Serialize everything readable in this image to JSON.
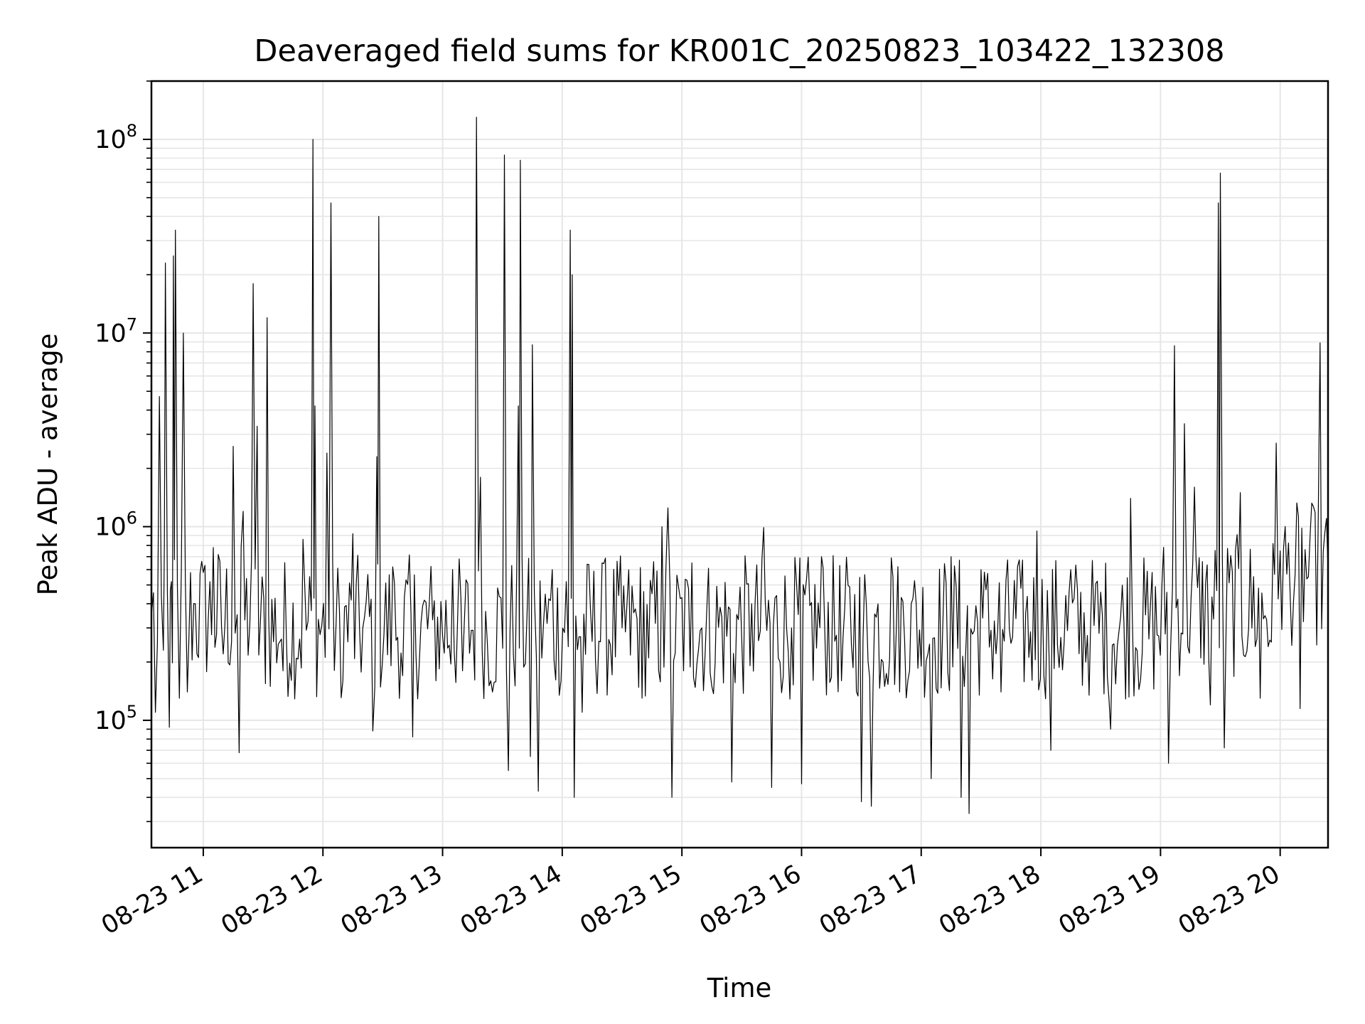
{
  "chart_data": {
    "type": "line",
    "title": "Deaveraged field sums for KR001C_20250823_103422_132308",
    "xlabel": "Time",
    "ylabel": "Peak ADU - average",
    "y_scale": "log",
    "ylim": [
      22000,
      200000000
    ],
    "xlim": [
      "2025-08-23T10:34",
      "2025-08-23T20:24"
    ],
    "grid": true,
    "line_color": "#000000",
    "grid_color": "#e6e6e6",
    "x_ticks": [
      {
        "value": "2025-08-23T11:00",
        "label": "08-23 11"
      },
      {
        "value": "2025-08-23T12:00",
        "label": "08-23 12"
      },
      {
        "value": "2025-08-23T13:00",
        "label": "08-23 13"
      },
      {
        "value": "2025-08-23T14:00",
        "label": "08-23 14"
      },
      {
        "value": "2025-08-23T15:00",
        "label": "08-23 15"
      },
      {
        "value": "2025-08-23T16:00",
        "label": "08-23 16"
      },
      {
        "value": "2025-08-23T17:00",
        "label": "08-23 17"
      },
      {
        "value": "2025-08-23T18:00",
        "label": "08-23 18"
      },
      {
        "value": "2025-08-23T19:00",
        "label": "08-23 19"
      },
      {
        "value": "2025-08-23T20:00",
        "label": "08-23 20"
      }
    ],
    "y_ticks": [
      {
        "value": 100000,
        "base": "10",
        "exp": "5"
      },
      {
        "value": 1000000,
        "base": "10",
        "exp": "6"
      },
      {
        "value": 10000000,
        "base": "10",
        "exp": "7"
      },
      {
        "value": 100000000,
        "base": "10",
        "exp": "8"
      }
    ],
    "series": [
      {
        "points": [
          [
            "2025-08-23T10:34",
            350000
          ],
          [
            "2025-08-23T10:36",
            110000
          ],
          [
            "2025-08-23T10:38",
            4700000
          ],
          [
            "2025-08-23T10:40",
            230000
          ],
          [
            "2025-08-23T10:41",
            23000000
          ],
          [
            "2025-08-23T10:43",
            92000
          ],
          [
            "2025-08-23T10:44",
            520000
          ],
          [
            "2025-08-23T10:45",
            25000000
          ],
          [
            "2025-08-23T10:46",
            34000000
          ],
          [
            "2025-08-23T10:48",
            130000
          ],
          [
            "2025-08-23T10:50",
            10000000
          ],
          [
            "2025-08-23T10:52",
            140000
          ],
          [
            "2025-08-23T10:56",
            400000
          ],
          [
            "2025-08-23T11:00",
            580000
          ],
          [
            "2025-08-23T11:05",
            780000
          ],
          [
            "2025-08-23T11:10",
            220000
          ],
          [
            "2025-08-23T11:15",
            2600000
          ],
          [
            "2025-08-23T11:18",
            68000
          ],
          [
            "2025-08-23T11:20",
            1200000
          ],
          [
            "2025-08-23T11:25",
            18000000
          ],
          [
            "2025-08-23T11:27",
            3300000
          ],
          [
            "2025-08-23T11:32",
            12000000
          ],
          [
            "2025-08-23T11:40",
            180000
          ],
          [
            "2025-08-23T11:50",
            860000
          ],
          [
            "2025-08-23T11:55",
            100000000
          ],
          [
            "2025-08-23T11:56",
            4200000
          ],
          [
            "2025-08-23T12:02",
            2400000
          ],
          [
            "2025-08-23T12:04",
            47000000
          ],
          [
            "2025-08-23T12:10",
            160000
          ],
          [
            "2025-08-23T12:15",
            920000
          ],
          [
            "2025-08-23T12:20",
            300000
          ],
          [
            "2025-08-23T12:25",
            88000
          ],
          [
            "2025-08-23T12:27",
            2300000
          ],
          [
            "2025-08-23T12:28",
            40000000
          ],
          [
            "2025-08-23T12:35",
            620000
          ],
          [
            "2025-08-23T12:40",
            170000
          ],
          [
            "2025-08-23T12:45",
            82000
          ],
          [
            "2025-08-23T12:55",
            330000
          ],
          [
            "2025-08-23T13:05",
            600000
          ],
          [
            "2025-08-23T13:10",
            180000
          ],
          [
            "2025-08-23T13:17",
            130000000
          ],
          [
            "2025-08-23T13:19",
            1800000
          ],
          [
            "2025-08-23T13:25",
            140000
          ],
          [
            "2025-08-23T13:31",
            83000000
          ],
          [
            "2025-08-23T13:33",
            55000
          ],
          [
            "2025-08-23T13:38",
            4200000
          ],
          [
            "2025-08-23T13:39",
            78000000
          ],
          [
            "2025-08-23T13:44",
            65000
          ],
          [
            "2025-08-23T13:45",
            8700000
          ],
          [
            "2025-08-23T13:48",
            43000
          ],
          [
            "2025-08-23T13:55",
            600000
          ],
          [
            "2025-08-23T14:02",
            520000
          ],
          [
            "2025-08-23T14:04",
            34000000
          ],
          [
            "2025-08-23T14:05",
            20000000
          ],
          [
            "2025-08-23T14:06",
            40000
          ],
          [
            "2025-08-23T14:10",
            110000
          ],
          [
            "2025-08-23T14:20",
            650000
          ],
          [
            "2025-08-23T14:30",
            300000
          ],
          [
            "2025-08-23T14:40",
            130000
          ],
          [
            "2025-08-23T14:50",
            1000000
          ],
          [
            "2025-08-23T14:53",
            1250000
          ],
          [
            "2025-08-23T14:55",
            40000
          ],
          [
            "2025-08-23T15:05",
            650000
          ],
          [
            "2025-08-23T15:15",
            150000
          ],
          [
            "2025-08-23T15:25",
            48000
          ],
          [
            "2025-08-23T15:35",
            400000
          ],
          [
            "2025-08-23T15:41",
            990000
          ],
          [
            "2025-08-23T15:45",
            45000
          ],
          [
            "2025-08-23T15:55",
            300000
          ],
          [
            "2025-08-23T16:00",
            47000
          ],
          [
            "2025-08-23T16:10",
            700000
          ],
          [
            "2025-08-23T16:20",
            160000
          ],
          [
            "2025-08-23T16:30",
            38000
          ],
          [
            "2025-08-23T16:35",
            36000
          ],
          [
            "2025-08-23T16:45",
            690000
          ],
          [
            "2025-08-23T16:55",
            400000
          ],
          [
            "2025-08-23T17:05",
            50000
          ],
          [
            "2025-08-23T17:15",
            700000
          ],
          [
            "2025-08-23T17:20",
            40000
          ],
          [
            "2025-08-23T17:24",
            33000
          ],
          [
            "2025-08-23T17:30",
            600000
          ],
          [
            "2025-08-23T17:40",
            140000
          ],
          [
            "2025-08-23T17:50",
            480000
          ],
          [
            "2025-08-23T17:58",
            950000
          ],
          [
            "2025-08-23T18:05",
            70000
          ],
          [
            "2025-08-23T18:15",
            600000
          ],
          [
            "2025-08-23T18:25",
            330000
          ],
          [
            "2025-08-23T18:35",
            90000
          ],
          [
            "2025-08-23T18:45",
            1400000
          ],
          [
            "2025-08-23T18:55",
            400000
          ],
          [
            "2025-08-23T19:04",
            60000
          ],
          [
            "2025-08-23T19:07",
            8600000
          ],
          [
            "2025-08-23T19:12",
            3400000
          ],
          [
            "2025-08-23T19:17",
            1600000
          ],
          [
            "2025-08-23T19:25",
            120000
          ],
          [
            "2025-08-23T19:29",
            47000000
          ],
          [
            "2025-08-23T19:30",
            67000000
          ],
          [
            "2025-08-23T19:32",
            72000
          ],
          [
            "2025-08-23T19:40",
            1500000
          ],
          [
            "2025-08-23T19:50",
            130000
          ],
          [
            "2025-08-23T19:54",
            240000
          ],
          [
            "2025-08-23T19:58",
            2700000
          ],
          [
            "2025-08-23T20:00",
            750000
          ],
          [
            "2025-08-23T20:05",
            450000
          ],
          [
            "2025-08-23T20:10",
            115000
          ],
          [
            "2025-08-23T20:15",
            900000
          ],
          [
            "2025-08-23T20:20",
            8900000
          ],
          [
            "2025-08-23T20:24",
            600000
          ]
        ]
      }
    ]
  }
}
